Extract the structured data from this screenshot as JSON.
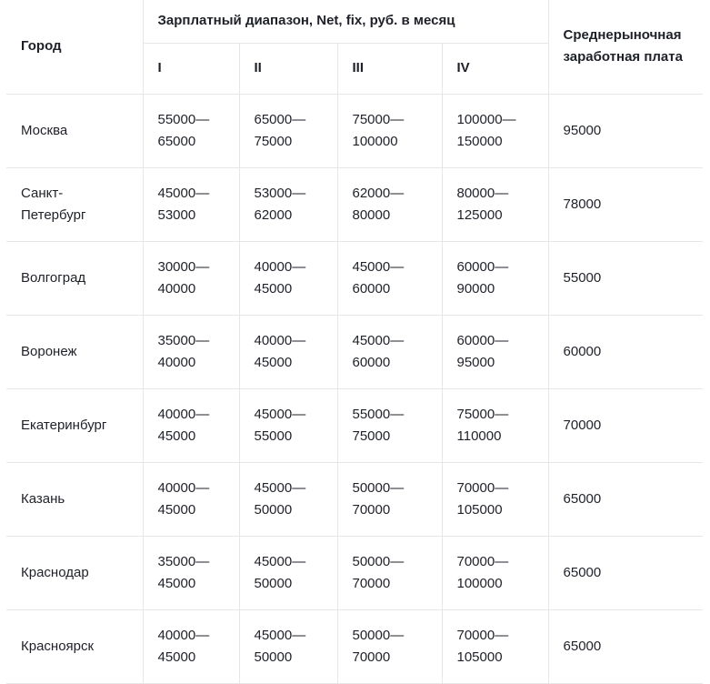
{
  "headers": {
    "city": "Город",
    "range": "Зарплатный диапазон, Net, fix, руб. в месяц",
    "levels": [
      "I",
      "II",
      "III",
      "IV"
    ],
    "average": "Среднерыночная заработная плата"
  },
  "rows": [
    {
      "city": "Москва",
      "ranges": [
        [
          "55000—",
          "65000"
        ],
        [
          "65000—",
          "75000"
        ],
        [
          "75000—",
          "100000"
        ],
        [
          "100000—",
          "150000"
        ]
      ],
      "average": "95000"
    },
    {
      "city": "Санкт-Петербург",
      "ranges": [
        [
          "45000—",
          "53000"
        ],
        [
          "53000—",
          "62000"
        ],
        [
          "62000—",
          "80000"
        ],
        [
          "80000—",
          "125000"
        ]
      ],
      "average": "78000"
    },
    {
      "city": "Волгоград",
      "ranges": [
        [
          "30000—",
          "40000"
        ],
        [
          "40000—",
          "45000"
        ],
        [
          "45000—",
          "60000"
        ],
        [
          "60000—",
          "90000"
        ]
      ],
      "average": "55000"
    },
    {
      "city": "Воронеж",
      "ranges": [
        [
          "35000—",
          "40000"
        ],
        [
          "40000—",
          "45000"
        ],
        [
          "45000—",
          "60000"
        ],
        [
          "60000—",
          "95000"
        ]
      ],
      "average": "60000"
    },
    {
      "city": "Екатеринбург",
      "ranges": [
        [
          "40000—",
          "45000"
        ],
        [
          "45000—",
          "55000"
        ],
        [
          "55000—",
          "75000"
        ],
        [
          "75000—",
          "110000"
        ]
      ],
      "average": "70000"
    },
    {
      "city": "Казань",
      "ranges": [
        [
          "40000—",
          "45000"
        ],
        [
          "45000—",
          "50000"
        ],
        [
          "50000—",
          "70000"
        ],
        [
          "70000—",
          "105000"
        ]
      ],
      "average": "65000"
    },
    {
      "city": "Краснодар",
      "ranges": [
        [
          "35000—",
          "45000"
        ],
        [
          "45000—",
          "50000"
        ],
        [
          "50000—",
          "70000"
        ],
        [
          "70000—",
          "100000"
        ]
      ],
      "average": "65000"
    },
    {
      "city": "Красноярск",
      "ranges": [
        [
          "40000—",
          "45000"
        ],
        [
          "45000—",
          "50000"
        ],
        [
          "50000—",
          "70000"
        ],
        [
          "70000—",
          "105000"
        ]
      ],
      "average": "65000"
    }
  ]
}
